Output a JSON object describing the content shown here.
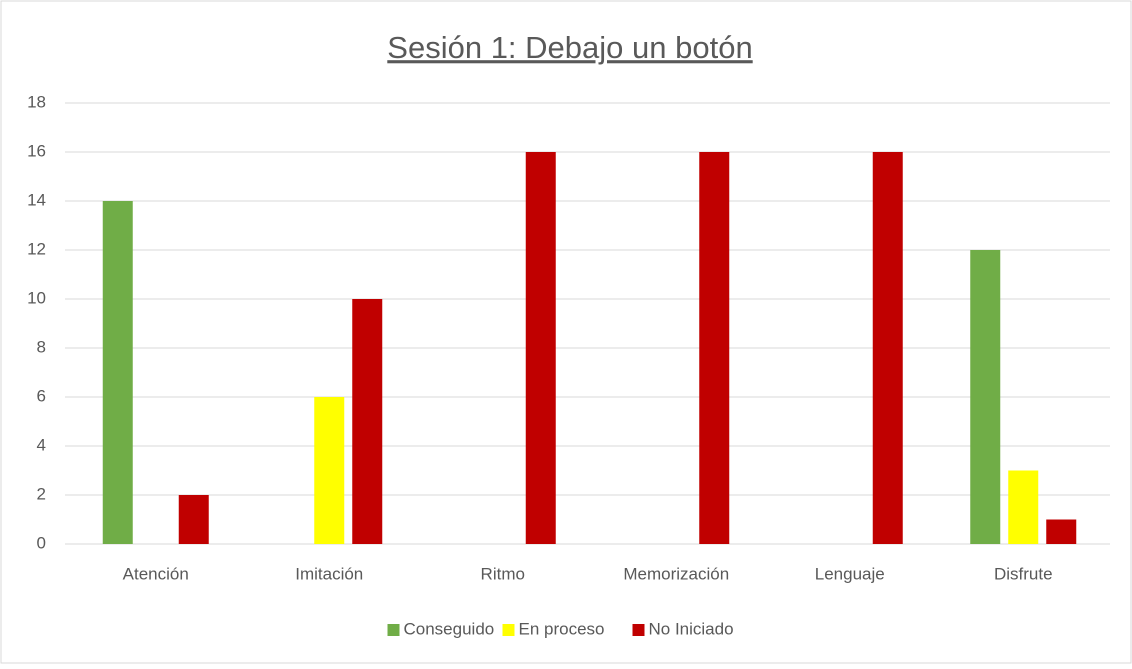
{
  "chart_data": {
    "type": "bar",
    "title": "Sesión 1: Debajo un botón",
    "categories": [
      "Atención",
      "Imitación",
      "Ritmo",
      "Memorización",
      "Lenguaje",
      "Disfrute"
    ],
    "series": [
      {
        "name": "Conseguido",
        "color": "#70ad47",
        "values": [
          14,
          0,
          0,
          0,
          0,
          12
        ]
      },
      {
        "name": "En proceso",
        "color": "#ffff00",
        "values": [
          0,
          6,
          0,
          0,
          0,
          3
        ]
      },
      {
        "name": "No Iniciado",
        "color": "#c00000",
        "values": [
          2,
          10,
          16,
          16,
          16,
          1
        ]
      }
    ],
    "ylim": [
      0,
      18
    ],
    "yticks": [
      0,
      2,
      4,
      6,
      8,
      10,
      12,
      14,
      16,
      18
    ],
    "grid": true,
    "legend": "bottom"
  }
}
